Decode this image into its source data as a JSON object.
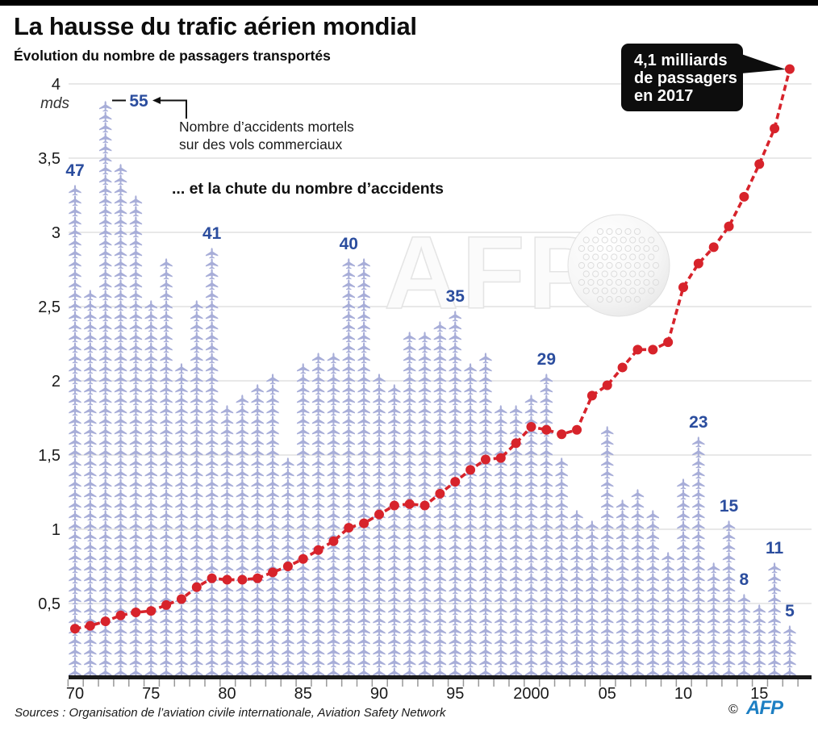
{
  "header": {
    "title": "La hausse du trafic aérien mondial",
    "subtitle": "Évolution du nombre de passagers transportés"
  },
  "annotations": {
    "accidents_note_line1": "Nombre d’accidents mortels",
    "accidents_note_line2": "sur des vols commerciaux",
    "accidents_drop": "... et la chute du nombre d’accidents",
    "unit_label": "mds"
  },
  "callout": {
    "lines": [
      "4,1 milliards",
      "de passagers",
      "en 2017"
    ],
    "bg": "#0d0d0d",
    "text_color": "#ffffff"
  },
  "watermark": {
    "text": "AFP"
  },
  "footer": {
    "source": "Sources : Organisation de l’aviation civile internationale, Aviation Safety Network",
    "copyright_symbol": "©",
    "agency": "AFP",
    "agency_color": "#1d7fc3"
  },
  "chart_data": {
    "type": "combo: line + pictogram-columns",
    "x": [
      1970,
      1971,
      1972,
      1973,
      1974,
      1975,
      1976,
      1977,
      1978,
      1979,
      1980,
      1981,
      1982,
      1983,
      1984,
      1985,
      1986,
      1987,
      1988,
      1989,
      1990,
      1991,
      1992,
      1993,
      1994,
      1995,
      1996,
      1997,
      1998,
      1999,
      2000,
      2001,
      2002,
      2003,
      2004,
      2005,
      2006,
      2007,
      2008,
      2009,
      2010,
      2011,
      2012,
      2013,
      2014,
      2015,
      2016,
      2017
    ],
    "series": [
      {
        "name": "Passagers transportés (milliards, mds)",
        "type": "line",
        "color": "#d7232b",
        "values": [
          0.33,
          0.35,
          0.38,
          0.42,
          0.44,
          0.45,
          0.49,
          0.53,
          0.61,
          0.67,
          0.66,
          0.66,
          0.67,
          0.71,
          0.75,
          0.8,
          0.86,
          0.92,
          1.01,
          1.04,
          1.1,
          1.16,
          1.17,
          1.16,
          1.24,
          1.32,
          1.4,
          1.47,
          1.48,
          1.58,
          1.69,
          1.67,
          1.64,
          1.67,
          1.9,
          1.97,
          2.09,
          2.21,
          2.21,
          2.26,
          2.63,
          2.79,
          2.9,
          3.04,
          3.24,
          3.46,
          3.7,
          4.1
        ]
      },
      {
        "name": "Nombre d’accidents mortels sur des vols commerciaux",
        "type": "pictogram-column",
        "icon": "airplane",
        "color": "#a7add8",
        "values": [
          47,
          37,
          55,
          49,
          46,
          36,
          40,
          30,
          36,
          41,
          26,
          27,
          28,
          29,
          21,
          30,
          31,
          31,
          40,
          40,
          29,
          28,
          33,
          33,
          34,
          35,
          30,
          31,
          26,
          26,
          27,
          29,
          21,
          16,
          15,
          24,
          17,
          18,
          16,
          12,
          19,
          23,
          11,
          15,
          8,
          7,
          11,
          5
        ]
      }
    ],
    "labeled_accident_years": [
      1970,
      1972,
      1979,
      1988,
      1995,
      2001,
      2011,
      2013,
      2014,
      2016,
      2017
    ],
    "label_color": "#2b4d9e",
    "ylabel": "mds",
    "yticks": [
      "0,5",
      "1",
      "1,5",
      "2",
      "2,5",
      "3",
      "3,5",
      "4"
    ],
    "ytick_values": [
      0.5,
      1,
      1.5,
      2,
      2.5,
      3,
      3.5,
      4
    ],
    "ylim": [
      0,
      4.3
    ],
    "xticks": [
      {
        "label": "70",
        "year": 1970
      },
      {
        "label": "75",
        "year": 1975
      },
      {
        "label": "80",
        "year": 1980
      },
      {
        "label": "85",
        "year": 1985
      },
      {
        "label": "90",
        "year": 1990
      },
      {
        "label": "95",
        "year": 1995
      },
      {
        "label": "2000",
        "year": 2000
      },
      {
        "label": "05",
        "year": 2005
      },
      {
        "label": "10",
        "year": 2010
      },
      {
        "label": "15",
        "year": 2015
      }
    ],
    "grid": true,
    "legend": "none"
  }
}
